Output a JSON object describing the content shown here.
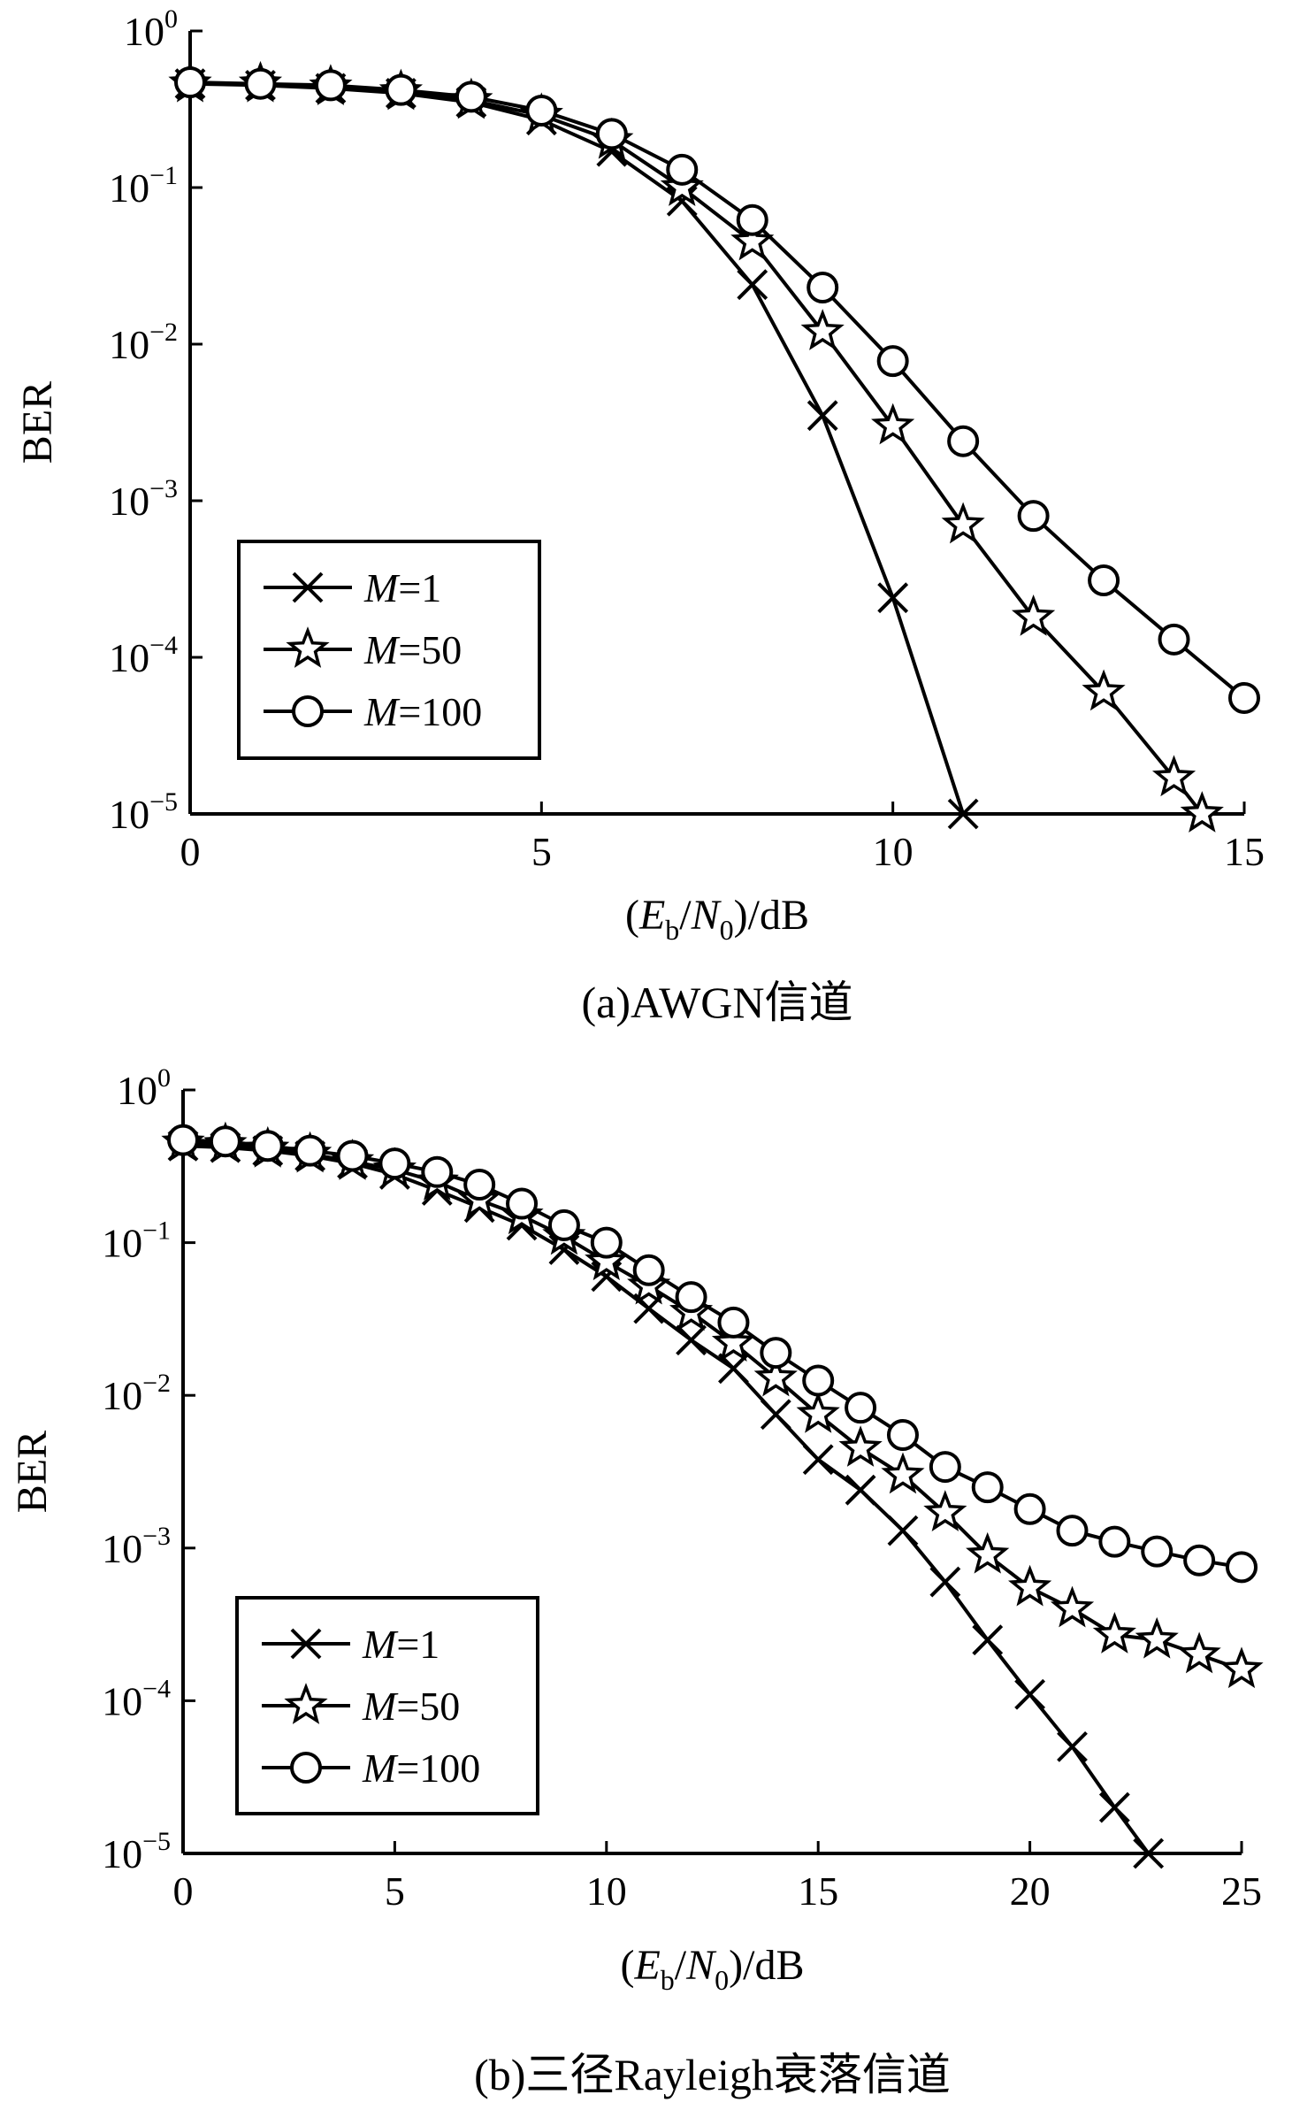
{
  "chart_data": [
    {
      "type": "line",
      "caption": "(a)AWGN信道",
      "xlabel": "(Eb/N0)/dB",
      "ylabel": "BER",
      "yscale": "log",
      "xlim": [
        0,
        15
      ],
      "ylim": [
        1e-05,
        1
      ],
      "xticks": [
        "0",
        "5",
        "10",
        "15"
      ],
      "yticks": [
        {
          "base": "10",
          "exp": "0"
        },
        {
          "base": "10",
          "exp": "−1"
        },
        {
          "base": "10",
          "exp": "−2"
        },
        {
          "base": "10",
          "exp": "−3"
        },
        {
          "base": "10",
          "exp": "−4"
        },
        {
          "base": "10",
          "exp": "−5"
        }
      ],
      "grid": false,
      "legend_position": "bottom-left",
      "series": [
        {
          "name": "M=1",
          "var": "M",
          "eq": "=1",
          "marker": "x",
          "x": [
            0,
            1,
            2,
            3,
            4,
            5,
            6,
            7,
            8,
            9,
            10,
            11
          ],
          "y": [
            0.46,
            0.45,
            0.43,
            0.4,
            0.35,
            0.27,
            0.17,
            0.082,
            0.024,
            0.0035,
            0.00024,
            1e-05
          ]
        },
        {
          "name": "M=50",
          "var": "M",
          "eq": "=50",
          "marker": "star",
          "x": [
            0,
            1,
            2,
            3,
            4,
            5,
            6,
            7,
            8,
            9,
            10,
            11,
            12,
            13,
            14,
            14.4
          ],
          "y": [
            0.46,
            0.46,
            0.44,
            0.41,
            0.36,
            0.29,
            0.2,
            0.1,
            0.045,
            0.012,
            0.003,
            0.0007,
            0.00018,
            6e-05,
            1.7e-05,
            1e-05
          ]
        },
        {
          "name": "M=100",
          "var": "M",
          "eq": "=100",
          "marker": "circle",
          "x": [
            0,
            1,
            2,
            3,
            4,
            5,
            6,
            7,
            8,
            9,
            10,
            11,
            12,
            13,
            14,
            15
          ],
          "y": [
            0.47,
            0.46,
            0.45,
            0.42,
            0.38,
            0.31,
            0.22,
            0.13,
            0.062,
            0.023,
            0.0078,
            0.0024,
            0.0008,
            0.00031,
            0.00013,
            5.5e-05
          ]
        }
      ]
    },
    {
      "type": "line",
      "caption": "(b)三径Rayleigh衰落信道",
      "xlabel": "(Eb/N0)/dB",
      "ylabel": "BER",
      "yscale": "log",
      "xlim": [
        0,
        25
      ],
      "ylim": [
        1e-05,
        1
      ],
      "xticks": [
        "0",
        "5",
        "10",
        "15",
        "20",
        "25"
      ],
      "yticks": [
        {
          "base": "10",
          "exp": "0"
        },
        {
          "base": "10",
          "exp": "−1"
        },
        {
          "base": "10",
          "exp": "−2"
        },
        {
          "base": "10",
          "exp": "−3"
        },
        {
          "base": "10",
          "exp": "−4"
        },
        {
          "base": "10",
          "exp": "−5"
        }
      ],
      "grid": false,
      "legend_position": "bottom-left",
      "series": [
        {
          "name": "M=1",
          "var": "M",
          "eq": "=1",
          "marker": "x",
          "x": [
            0,
            1,
            2,
            3,
            4,
            5,
            6,
            7,
            8,
            9,
            10,
            11,
            12,
            13,
            14,
            15,
            16,
            17,
            18,
            19,
            20,
            21,
            22,
            22.8
          ],
          "y": [
            0.43,
            0.42,
            0.4,
            0.37,
            0.33,
            0.28,
            0.22,
            0.17,
            0.13,
            0.09,
            0.06,
            0.037,
            0.023,
            0.015,
            0.0075,
            0.0038,
            0.0024,
            0.0013,
            0.0006,
            0.00025,
            0.00011,
            5e-05,
            2e-05,
            1e-05
          ]
        },
        {
          "name": "M=50",
          "var": "M",
          "eq": "=50",
          "marker": "star",
          "x": [
            0,
            1,
            2,
            3,
            4,
            5,
            6,
            7,
            8,
            9,
            10,
            11,
            12,
            13,
            14,
            15,
            16,
            17,
            18,
            19,
            20,
            21,
            22,
            23,
            24,
            25
          ],
          "y": [
            0.45,
            0.44,
            0.41,
            0.38,
            0.34,
            0.3,
            0.25,
            0.19,
            0.15,
            0.11,
            0.075,
            0.052,
            0.035,
            0.022,
            0.013,
            0.0075,
            0.0045,
            0.003,
            0.0017,
            0.0009,
            0.00055,
            0.0004,
            0.00027,
            0.00025,
            0.0002,
            0.00016
          ]
        },
        {
          "name": "M=100",
          "var": "M",
          "eq": "=100",
          "marker": "circle",
          "x": [
            0,
            1,
            2,
            3,
            4,
            5,
            6,
            7,
            8,
            9,
            10,
            11,
            12,
            13,
            14,
            15,
            16,
            17,
            18,
            19,
            20,
            21,
            22,
            23,
            24,
            25
          ],
          "y": [
            0.47,
            0.46,
            0.43,
            0.4,
            0.37,
            0.33,
            0.29,
            0.24,
            0.18,
            0.13,
            0.1,
            0.066,
            0.044,
            0.03,
            0.019,
            0.0125,
            0.0083,
            0.0055,
            0.0034,
            0.0025,
            0.0018,
            0.0013,
            0.0011,
            0.00095,
            0.00083,
            0.00075
          ]
        }
      ]
    }
  ]
}
